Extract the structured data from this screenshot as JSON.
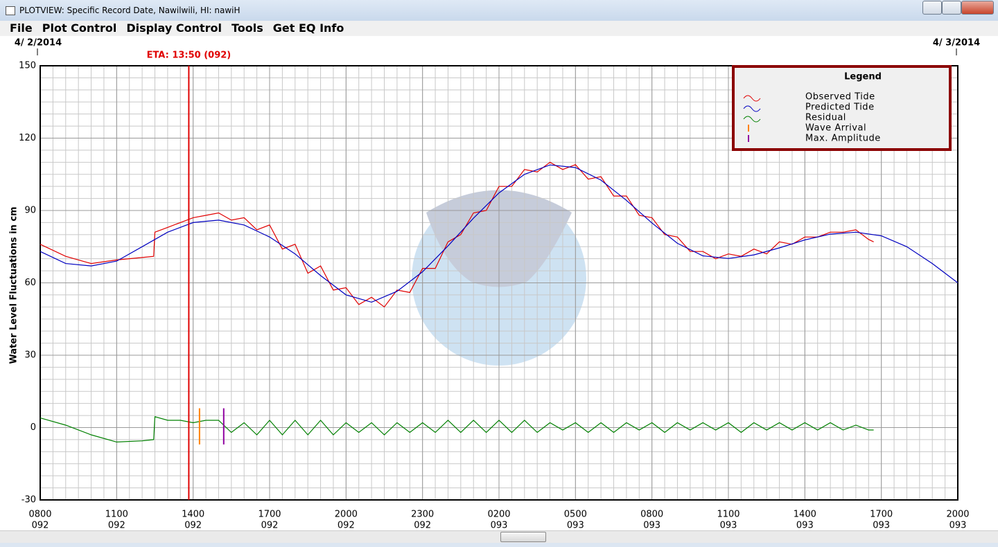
{
  "window": {
    "title": "PLOTVIEW: Specific Record Date, Nawilwili, HI: nawiH",
    "menu": [
      "File",
      "Plot Control",
      "Display Control",
      "Tools",
      "Get EQ Info"
    ],
    "date_labels": [
      "4/ 2/2014",
      "4/ 3/2014"
    ]
  },
  "chart_data": {
    "type": "line",
    "y_label": "Water Level Fluctuations in cm",
    "legend_title": "Legend",
    "ylim": [
      -30,
      150
    ],
    "yticks": [
      -30,
      0,
      30,
      60,
      90,
      120,
      150
    ],
    "xlim": [
      0,
      36
    ],
    "xticks": [
      {
        "value": 0,
        "label": "0800"
      },
      {
        "value": 3,
        "label": "1100"
      },
      {
        "value": 6,
        "label": "1400"
      },
      {
        "value": 9,
        "label": "1700"
      },
      {
        "value": 12,
        "label": "2000"
      },
      {
        "value": 15,
        "label": "2300"
      },
      {
        "value": 18,
        "label": "0200"
      },
      {
        "value": 21,
        "label": "0500"
      },
      {
        "value": 24,
        "label": "0800"
      },
      {
        "value": 27,
        "label": "1100"
      },
      {
        "value": 30,
        "label": "1400"
      },
      {
        "value": 33,
        "label": "1700"
      },
      {
        "value": 36,
        "label": "2000"
      }
    ],
    "xtick_days": [
      "092",
      "092",
      "092",
      "092",
      "092",
      "092",
      "093",
      "093",
      "093",
      "093",
      "093",
      "093",
      "093"
    ],
    "grid": true,
    "minor_grid": {
      "x": 0.5,
      "y": 5
    },
    "series": [
      {
        "name": "Observed Tide",
        "color": "#e00000",
        "x": [
          0,
          1,
          2,
          3,
          4,
          4.45,
          4.5,
          5,
          5.5,
          6,
          6.5,
          7,
          7.5,
          8,
          8.5,
          9,
          9.5,
          10,
          10.5,
          11,
          11.5,
          12,
          12.5,
          13,
          13.5,
          14,
          14.5,
          15,
          15.5,
          16,
          16.5,
          17,
          17.5,
          18,
          18.5,
          19,
          19.5,
          20,
          20.5,
          21,
          21.5,
          22,
          22.5,
          23,
          23.5,
          24,
          24.5,
          25,
          25.5,
          26,
          26.5,
          27,
          27.5,
          28,
          28.5,
          29,
          29.5,
          30,
          30.5,
          31,
          31.5,
          32,
          32.5,
          32.7
        ],
        "values": [
          76,
          71,
          68,
          69.5,
          70.5,
          71,
          81,
          83,
          85,
          87,
          88,
          89,
          86,
          87,
          82,
          84,
          74,
          76,
          64,
          67,
          57,
          58,
          51,
          54,
          50,
          57,
          56,
          66,
          66,
          77,
          80,
          89,
          90,
          100,
          100,
          107,
          106,
          110,
          107,
          109,
          103,
          104,
          96,
          96,
          88,
          87,
          80,
          79,
          73,
          73,
          70,
          72,
          71,
          74,
          72,
          77,
          76,
          79,
          79,
          81,
          81,
          82,
          78,
          77
        ]
      },
      {
        "name": "Predicted Tide",
        "color": "#0000c0",
        "x": [
          0,
          1,
          2,
          3,
          4,
          5,
          6,
          7,
          8,
          9,
          10,
          11,
          12,
          13,
          14,
          15,
          16,
          17,
          18,
          19,
          20,
          21,
          22,
          23,
          24,
          25,
          26,
          27,
          28,
          29,
          30,
          31,
          32,
          33,
          34,
          35,
          36
        ],
        "values": [
          73,
          68,
          67,
          69,
          75,
          81,
          85,
          86,
          84,
          79,
          72,
          63,
          55,
          52,
          56.5,
          64.6,
          75.3,
          86.8,
          97.3,
          105,
          108.9,
          107.8,
          102.6,
          94.2,
          84.8,
          76.4,
          71.2,
          70.1,
          71.6,
          74.5,
          77.8,
          80.2,
          81,
          79.5,
          75,
          68,
          60
        ]
      },
      {
        "name": "Residual",
        "color": "#008000",
        "x": [
          0,
          1,
          2,
          3,
          4,
          4.45,
          4.5,
          5,
          5.5,
          6,
          6.5,
          7,
          7.5,
          8,
          8.5,
          9,
          9.5,
          10,
          10.5,
          11,
          11.5,
          12,
          12.5,
          13,
          13.5,
          14,
          14.5,
          15,
          15.5,
          16,
          16.5,
          17,
          17.5,
          18,
          18.5,
          19,
          19.5,
          20,
          20.5,
          21,
          21.5,
          22,
          22.5,
          23,
          23.5,
          24,
          24.5,
          25,
          25.5,
          26,
          26.5,
          27,
          27.5,
          28,
          28.5,
          29,
          29.5,
          30,
          30.5,
          31,
          31.5,
          32,
          32.5,
          32.7
        ],
        "values": [
          4,
          1,
          -3,
          -6,
          -5.5,
          -5,
          4.5,
          3,
          3,
          2,
          3,
          3,
          -2,
          2,
          -3,
          3,
          -3,
          3,
          -3,
          3,
          -3,
          2,
          -2,
          2,
          -3,
          2,
          -2,
          2,
          -2,
          3,
          -2,
          3,
          -2,
          3,
          -2,
          3,
          -2,
          2,
          -1,
          2,
          -2,
          2,
          -2,
          2,
          -1,
          2,
          -2,
          2,
          -1,
          2,
          -1,
          2,
          -2,
          2,
          -1,
          2,
          -1,
          2,
          -1,
          2,
          -1,
          1,
          -1,
          -1
        ]
      }
    ],
    "markers": [
      {
        "name": "Wave Arrival",
        "color": "#ff8000",
        "x": 6.25,
        "y_extent": [
          -7,
          8
        ]
      },
      {
        "name": "Max. Amplitude",
        "color": "#9000a0",
        "x": 7.2,
        "y_extent": [
          -7,
          8
        ]
      }
    ],
    "eta": {
      "label": "ETA: 13:50 (092)",
      "x": 5.83,
      "color": "#e00000"
    }
  }
}
